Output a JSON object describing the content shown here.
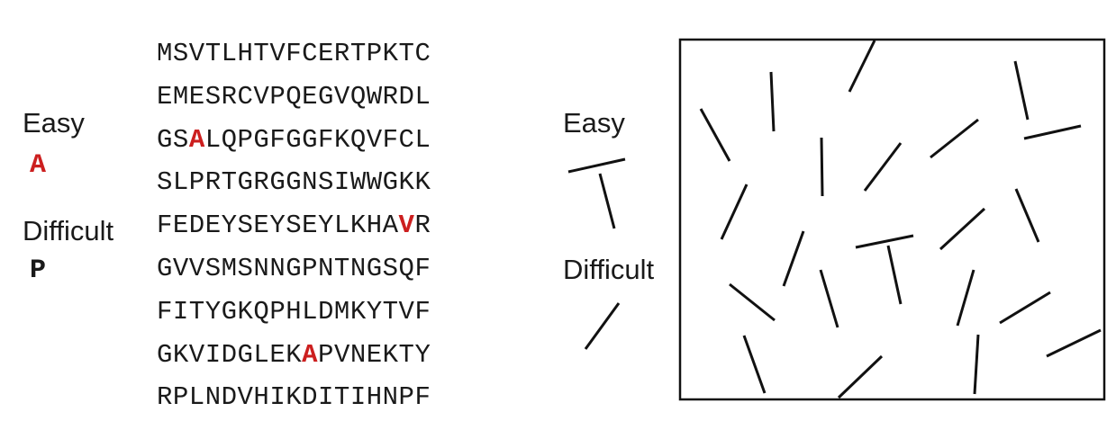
{
  "left_panel": {
    "easy_label": "Easy",
    "easy_target": "A",
    "difficult_label": "Difficult",
    "difficult_target": "P",
    "highlight_color": "#cc1f1f"
  },
  "sequence": {
    "rows": [
      "MSVTLHTVFCERTPKTC",
      "EMESRCVPQEGVQWRDL",
      "GSALQPGFGGFKQVFCL",
      "SLPRTGRGGNSIWWGKK",
      "FEDEYSEYSEYLKHAVR",
      "GVVSMSNNGPNTNGSQF",
      "FITYGKQPHLDMKYTVF",
      "GKVIDGLEKAPVNEKTY",
      "RPLNDVHIKDITIHNPF"
    ],
    "highlights": [
      {
        "row": 2,
        "index": 2
      },
      {
        "row": 4,
        "index": 15
      },
      {
        "row": 7,
        "index": 9
      }
    ]
  },
  "right_panel": {
    "easy_label": "Easy",
    "difficult_label": "Difficult"
  }
}
